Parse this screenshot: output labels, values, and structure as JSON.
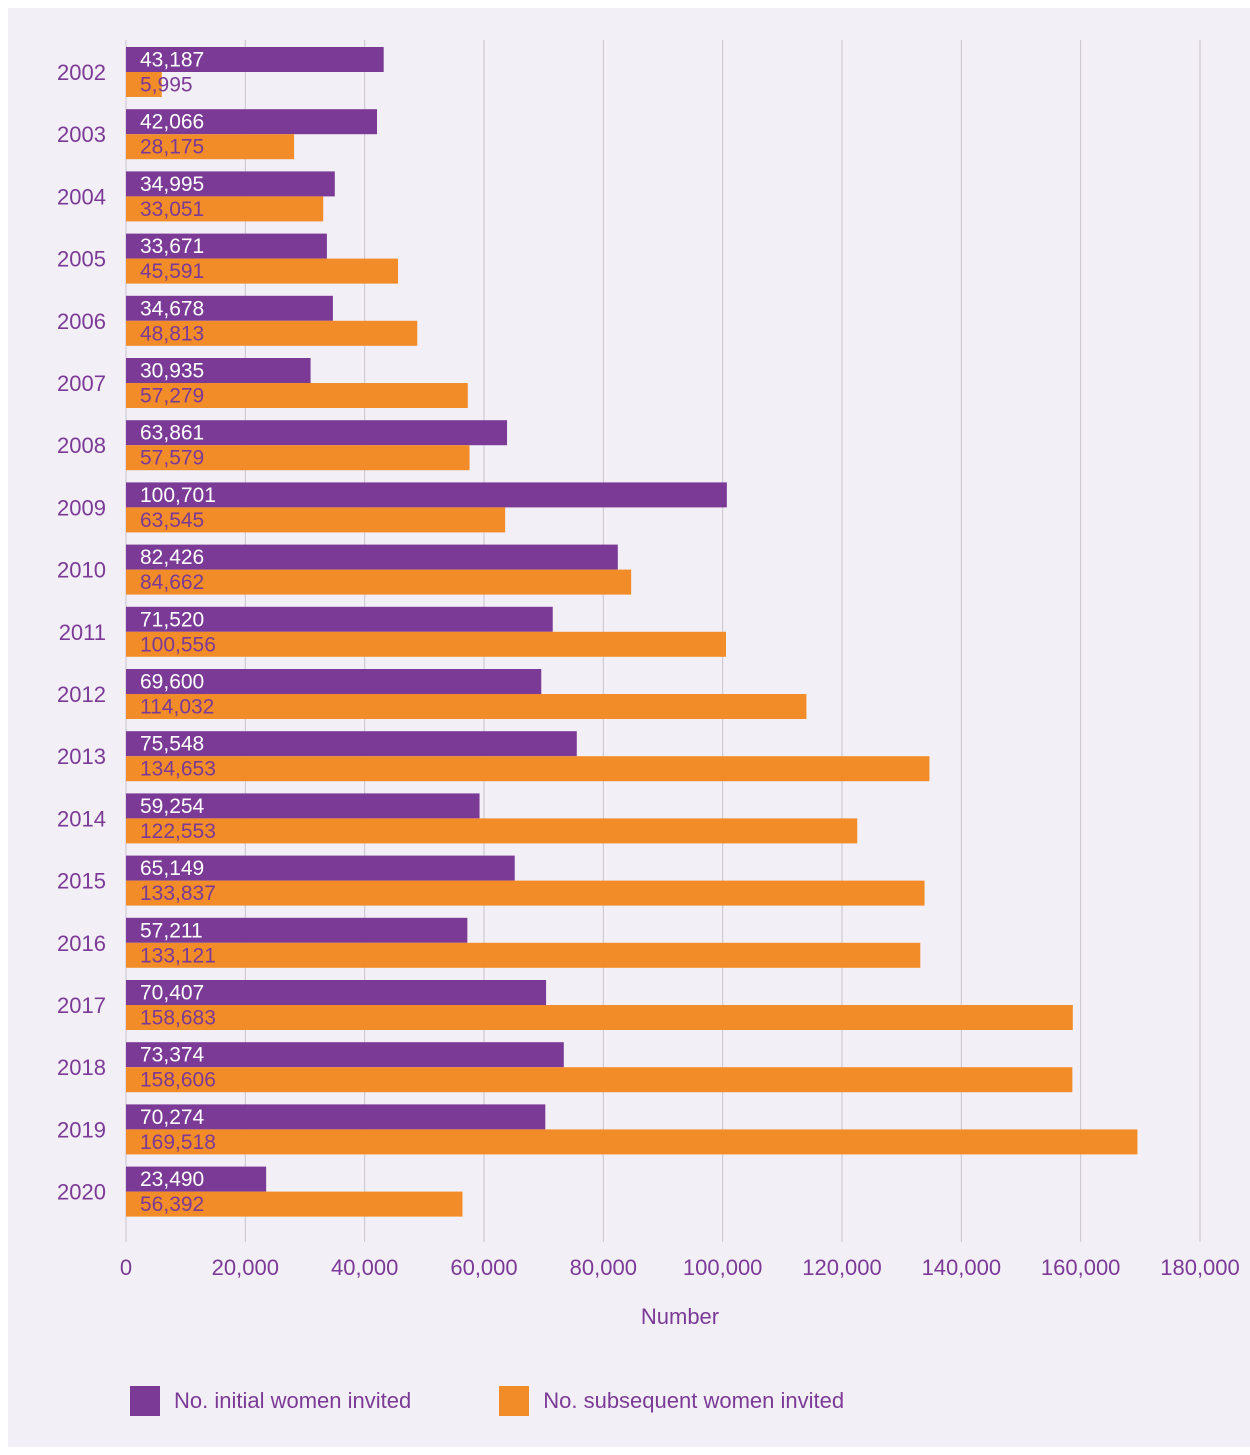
{
  "chart_data": {
    "type": "bar",
    "orientation": "horizontal",
    "categories": [
      "2002",
      "2003",
      "2004",
      "2005",
      "2006",
      "2007",
      "2008",
      "2009",
      "2010",
      "2011",
      "2012",
      "2013",
      "2014",
      "2015",
      "2016",
      "2017",
      "2018",
      "2019",
      "2020"
    ],
    "series": [
      {
        "name": "No. initial women invited",
        "color": "#7b3a96",
        "values": [
          43187,
          42066,
          34995,
          33671,
          34678,
          30935,
          63861,
          100701,
          82426,
          71520,
          69600,
          75548,
          59254,
          65149,
          57211,
          70407,
          73374,
          70274,
          23490
        ],
        "labels": [
          "43,187",
          "42,066",
          "34,995",
          "33,671",
          "34,678",
          "30,935",
          "63,861",
          "100,701",
          "82,426",
          "71,520",
          "69,600",
          "75,548",
          "59,254",
          "65,149",
          "57,211",
          "70,407",
          "73,374",
          "70,274",
          "23,490"
        ]
      },
      {
        "name": "No. subsequent women invited",
        "color": "#f28c28",
        "values": [
          5995,
          28175,
          33051,
          45591,
          48813,
          57279,
          57579,
          63545,
          84662,
          100556,
          114032,
          134653,
          122553,
          133837,
          133121,
          158683,
          158606,
          169518,
          56392
        ],
        "labels": [
          "5,995",
          "28,175",
          "33,051",
          "45,591",
          "48,813",
          "57,279",
          "57,579",
          "63,545",
          "84,662",
          "100,556",
          "114,032",
          "134,653",
          "122,553",
          "133,837",
          "133,121",
          "158,683",
          "158,606",
          "169,518",
          "56,392"
        ]
      }
    ],
    "x_ticks": [
      "0",
      "20,000",
      "40,000",
      "60,000",
      "80,000",
      "100,000",
      "120,000",
      "140,000",
      "160,000",
      "180,000"
    ],
    "xlabel": "Number",
    "ylabel": "",
    "xlim": [
      0,
      180000
    ],
    "grid": "vertical",
    "legend_position": "bottom-left",
    "colors": {
      "background": "#f3eff6",
      "text": "#7b3a96",
      "initial_label": "#ffffff",
      "subsequent_label": "#7b3a96",
      "gridline": "#c9c2cd"
    }
  }
}
